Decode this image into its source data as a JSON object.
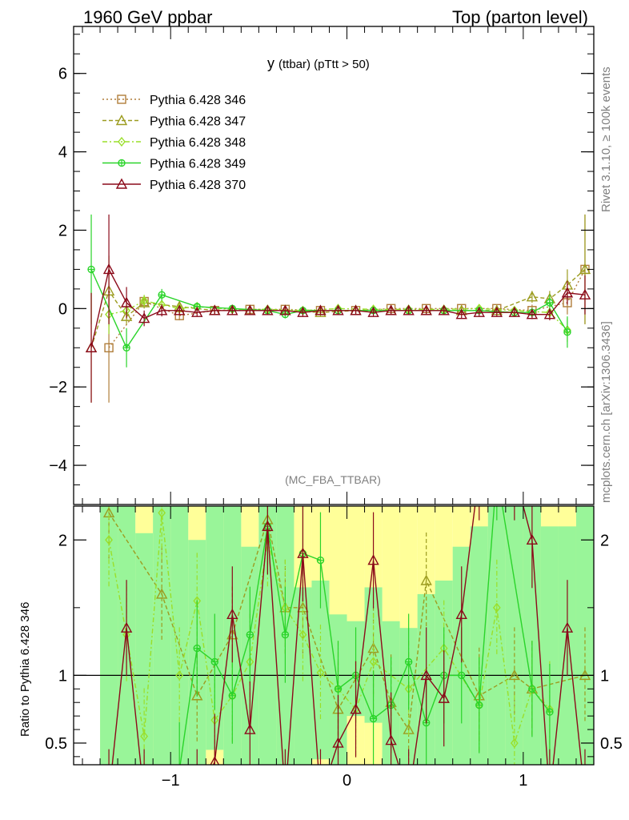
{
  "header": {
    "left": "1960 GeV ppbar",
    "right": "Top (parton level)"
  },
  "side": {
    "rivet": "Rivet 3.1.10, ≥ 100k events",
    "mcplots": "mcplots.cern.ch [arXiv:1306.3436]"
  },
  "chart_data": {
    "type": "line",
    "title": "y (ttbar) (pTtt > 50)",
    "title_main": "y",
    "title_sub": "(ttbar) (pTtt > 50)",
    "analysis": "(MC_FBA_TTBAR)",
    "ylabel_ratio": "Ratio to Pythia 6.428 346",
    "xlim": [
      -1.55,
      1.4
    ],
    "ylim_main": [
      -5,
      7.2
    ],
    "ylim_ratio": [
      0.34,
      2.25
    ],
    "x_ticks": [
      {
        "v": -1,
        "label": "−1"
      },
      {
        "v": 0,
        "label": "0"
      },
      {
        "v": 1,
        "label": "1"
      }
    ],
    "y_ticks_main": [
      {
        "v": -4,
        "label": "−4"
      },
      {
        "v": -2,
        "label": "−2"
      },
      {
        "v": 0,
        "label": "0"
      },
      {
        "v": 2,
        "label": "2"
      },
      {
        "v": 4,
        "label": "4"
      },
      {
        "v": 6,
        "label": "6"
      }
    ],
    "y_ticks_ratio": [
      {
        "v": 0.5,
        "label": "0.5"
      },
      {
        "v": 1,
        "label": "1"
      },
      {
        "v": 2,
        "label": "2"
      }
    ],
    "series": [
      {
        "name": "Pythia 6.428 346",
        "color": "#b07d3a",
        "marker": "square",
        "dash": "2,3",
        "x": [
          -1.35,
          -1.15,
          -0.95,
          -0.75,
          -0.55,
          -0.35,
          -0.15,
          0.05,
          0.25,
          0.45,
          0.65,
          0.85,
          1.05,
          1.25,
          1.35
        ],
        "y": [
          -1.0,
          0.18,
          -0.18,
          -0.05,
          -0.02,
          -0.02,
          -0.05,
          -0.05,
          0.0,
          0.0,
          0.0,
          0.0,
          -0.05,
          0.15,
          1.0
        ],
        "err": [
          1.4,
          0.15,
          0.12,
          0.1,
          0.1,
          0.1,
          0.1,
          0.1,
          0.1,
          0.1,
          0.1,
          0.1,
          0.15,
          0.3,
          1.4
        ]
      },
      {
        "name": "Pythia 6.428 347",
        "color": "#9c9c20",
        "marker": "triangle",
        "dash": "5,3",
        "x": [
          -1.45,
          -1.35,
          -1.25,
          -1.15,
          -0.95,
          -0.75,
          -0.55,
          -0.35,
          -0.15,
          0.05,
          0.25,
          0.45,
          0.65,
          0.85,
          1.05,
          1.15,
          1.25,
          1.35
        ],
        "y": [
          -1.0,
          0.45,
          -0.2,
          0.15,
          0.05,
          -0.05,
          -0.05,
          -0.05,
          -0.1,
          -0.05,
          -0.05,
          -0.05,
          -0.05,
          -0.05,
          0.3,
          0.25,
          0.6,
          1.0
        ],
        "err": [
          1.4,
          0.9,
          0.2,
          0.15,
          0.1,
          0.1,
          0.1,
          0.1,
          0.1,
          0.1,
          0.1,
          0.1,
          0.1,
          0.1,
          0.15,
          0.2,
          0.4,
          1.4
        ]
      },
      {
        "name": "Pythia 6.428 348",
        "color": "#9adf2a",
        "marker": "diamond",
        "dash": "6,3,2,3",
        "x": [
          -1.35,
          -1.25,
          -1.15,
          -1.05,
          -0.95,
          -0.85,
          -0.65,
          -0.45,
          -0.25,
          -0.05,
          0.15,
          0.35,
          0.55,
          0.75,
          0.95,
          1.15,
          1.25
        ],
        "y": [
          -0.15,
          -0.05,
          0.2,
          0.1,
          0.0,
          0.05,
          -0.02,
          -0.02,
          -0.05,
          0.0,
          -0.02,
          -0.02,
          -0.02,
          0.0,
          -0.05,
          -0.1,
          -0.55
        ],
        "err": [
          0.5,
          0.2,
          0.15,
          0.12,
          0.1,
          0.1,
          0.1,
          0.1,
          0.1,
          0.1,
          0.1,
          0.1,
          0.1,
          0.1,
          0.1,
          0.15,
          0.3
        ]
      },
      {
        "name": "Pythia 6.428 349",
        "color": "#2ad42a",
        "marker": "circleplus",
        "dash": "",
        "x": [
          -1.45,
          -1.25,
          -1.05,
          -0.85,
          -0.65,
          -0.45,
          -0.35,
          -0.25,
          -0.05,
          0.15,
          0.35,
          0.55,
          0.75,
          0.95,
          1.05,
          1.15,
          1.25
        ],
        "y": [
          1.0,
          -1.0,
          0.35,
          0.05,
          0.0,
          -0.05,
          -0.15,
          -0.05,
          -0.05,
          -0.05,
          -0.05,
          -0.05,
          -0.05,
          -0.1,
          -0.1,
          0.15,
          -0.6
        ],
        "err": [
          1.4,
          0.5,
          0.15,
          0.1,
          0.1,
          0.1,
          0.1,
          0.1,
          0.1,
          0.1,
          0.1,
          0.1,
          0.1,
          0.1,
          0.12,
          0.2,
          0.4
        ]
      },
      {
        "name": "Pythia 6.428 370",
        "color": "#8b0a1a",
        "marker": "triangle",
        "dash": "",
        "x": [
          -1.45,
          -1.35,
          -1.25,
          -1.15,
          -1.05,
          -0.95,
          -0.85,
          -0.75,
          -0.65,
          -0.55,
          -0.45,
          -0.35,
          -0.25,
          -0.15,
          -0.05,
          0.05,
          0.15,
          0.25,
          0.35,
          0.45,
          0.55,
          0.65,
          0.75,
          0.85,
          0.95,
          1.05,
          1.15,
          1.25,
          1.35
        ],
        "y": [
          -1.0,
          1.0,
          0.15,
          -0.25,
          -0.05,
          -0.05,
          -0.1,
          -0.05,
          -0.05,
          -0.05,
          -0.05,
          -0.05,
          -0.1,
          -0.05,
          -0.05,
          -0.05,
          -0.1,
          -0.05,
          -0.05,
          -0.05,
          -0.05,
          -0.15,
          -0.1,
          -0.1,
          -0.1,
          -0.15,
          -0.15,
          0.4,
          0.35
        ],
        "err": [
          1.4,
          1.4,
          0.4,
          0.2,
          0.15,
          0.12,
          0.1,
          0.1,
          0.1,
          0.1,
          0.1,
          0.1,
          0.1,
          0.1,
          0.1,
          0.1,
          0.1,
          0.1,
          0.1,
          0.1,
          0.1,
          0.1,
          0.1,
          0.1,
          0.1,
          0.12,
          0.15,
          0.3,
          0.5
        ]
      }
    ],
    "ratio_bands": [
      {
        "name": "yellow band",
        "color": "#ffff99",
        "bins": [
          [
            -1.4,
            -1.3,
            0.34,
            2.25
          ],
          [
            -1.3,
            -1.2,
            0.34,
            2.25
          ],
          [
            -1.2,
            -1.1,
            0.34,
            2.25
          ],
          [
            -1.1,
            -1.0,
            0.34,
            2.25
          ],
          [
            -1.0,
            -0.9,
            0.34,
            2.25
          ],
          [
            -0.9,
            -0.8,
            0.34,
            2.25
          ],
          [
            -0.8,
            -0.7,
            0.34,
            2.25
          ],
          [
            -0.7,
            -0.6,
            0.34,
            2.25
          ],
          [
            -0.6,
            -0.5,
            0.34,
            2.25
          ],
          [
            -0.5,
            -0.4,
            0.34,
            2.25
          ],
          [
            -0.4,
            -0.3,
            0.34,
            2.25
          ],
          [
            -0.3,
            -0.2,
            0.34,
            2.25
          ],
          [
            -0.2,
            -0.1,
            0.34,
            2.25
          ],
          [
            -0.1,
            0.0,
            0.34,
            2.25
          ],
          [
            0.0,
            0.1,
            0.34,
            2.25
          ],
          [
            0.1,
            0.2,
            0.34,
            2.25
          ],
          [
            0.2,
            0.3,
            0.34,
            2.25
          ],
          [
            0.3,
            0.4,
            0.34,
            2.25
          ],
          [
            0.4,
            0.5,
            0.34,
            2.25
          ],
          [
            0.5,
            0.6,
            0.34,
            2.25
          ],
          [
            0.6,
            0.7,
            0.34,
            2.25
          ],
          [
            0.7,
            0.8,
            0.34,
            2.25
          ],
          [
            0.8,
            0.9,
            0.34,
            2.25
          ],
          [
            0.9,
            1.0,
            0.34,
            2.25
          ],
          [
            1.0,
            1.1,
            0.34,
            2.25
          ],
          [
            1.1,
            1.2,
            0.34,
            2.25
          ],
          [
            1.2,
            1.3,
            0.34,
            2.25
          ],
          [
            1.3,
            1.4,
            0.34,
            2.25
          ]
        ]
      },
      {
        "name": "green band",
        "color": "#99f599",
        "bins": [
          [
            -1.4,
            -1.3,
            0.34,
            2.25
          ],
          [
            -1.3,
            -1.2,
            0.34,
            2.25
          ],
          [
            -1.2,
            -1.1,
            0.34,
            2.05
          ],
          [
            -1.1,
            -1.0,
            0.34,
            2.25
          ],
          [
            -1.0,
            -0.9,
            0.34,
            2.25
          ],
          [
            -0.9,
            -0.8,
            0.34,
            2.0
          ],
          [
            -0.8,
            -0.7,
            0.45,
            2.25
          ],
          [
            -0.7,
            -0.6,
            0.34,
            2.25
          ],
          [
            -0.6,
            -0.5,
            0.34,
            1.95
          ],
          [
            -0.5,
            -0.4,
            0.34,
            2.25
          ],
          [
            -0.4,
            -0.3,
            0.34,
            2.25
          ],
          [
            -0.3,
            -0.2,
            0.34,
            1.65
          ],
          [
            -0.2,
            -0.1,
            0.38,
            1.7
          ],
          [
            -0.1,
            0.0,
            0.34,
            1.45
          ],
          [
            0.0,
            0.1,
            0.7,
            1.4
          ],
          [
            0.1,
            0.2,
            0.65,
            1.65
          ],
          [
            0.2,
            0.3,
            0.34,
            1.4
          ],
          [
            0.3,
            0.4,
            0.34,
            1.35
          ],
          [
            0.4,
            0.5,
            0.34,
            1.6
          ],
          [
            0.5,
            0.6,
            0.34,
            1.7
          ],
          [
            0.6,
            0.7,
            0.34,
            1.95
          ],
          [
            0.7,
            0.8,
            0.34,
            2.1
          ],
          [
            0.8,
            0.9,
            0.34,
            2.25
          ],
          [
            0.9,
            1.0,
            0.34,
            2.25
          ],
          [
            1.0,
            1.1,
            0.34,
            2.25
          ],
          [
            1.1,
            1.2,
            0.34,
            2.1
          ],
          [
            1.2,
            1.3,
            0.34,
            2.1
          ],
          [
            1.3,
            1.4,
            0.34,
            2.25
          ]
        ]
      }
    ],
    "ratio_series": [
      {
        "name": "Pythia 6.428 347",
        "color": "#9c9c20",
        "marker": "triangle",
        "dash": "5,3",
        "x": [
          -1.35,
          -1.05,
          -0.85,
          -0.65,
          -0.45,
          -0.35,
          -0.25,
          -0.05,
          0.15,
          0.25,
          0.35,
          0.45,
          0.75,
          0.95,
          1.05,
          1.35
        ],
        "y": [
          2.2,
          1.6,
          0.85,
          1.3,
          2.15,
          1.5,
          1.5,
          0.75,
          1.2,
          0.8,
          0.6,
          1.7,
          0.85,
          1.0,
          0.9,
          1.0
        ]
      },
      {
        "name": "Pythia 6.428 348",
        "color": "#9adf2a",
        "marker": "diamond",
        "dash": "6,3,2,3",
        "x": [
          -1.35,
          -1.25,
          -1.15,
          -1.05,
          -0.95,
          -0.85,
          -0.75,
          -0.65,
          -0.55,
          -0.45,
          -0.35,
          -0.25,
          -0.15,
          -0.05,
          0.05,
          0.15,
          0.35,
          0.55,
          0.75,
          0.85,
          0.95,
          1.05,
          1.15
        ],
        "y": [
          2.0,
          1.3,
          0.55,
          2.2,
          1.0,
          1.55,
          0.67,
          0.85,
          1.1,
          2.0,
          1.5,
          1.3,
          1.02,
          0.9,
          0.75,
          1.1,
          0.9,
          1.2,
          0.78,
          1.5,
          0.5,
          0.9,
          0.75
        ]
      },
      {
        "name": "Pythia 6.428 349",
        "color": "#2ad42a",
        "marker": "circleplus",
        "dash": "",
        "x": [
          -0.95,
          -0.85,
          -0.75,
          -0.65,
          -0.55,
          -0.45,
          -0.35,
          -0.25,
          -0.15,
          -0.05,
          0.05,
          0.15,
          0.25,
          0.35,
          0.45,
          0.55,
          0.65,
          0.75,
          0.85,
          1.05,
          1.15
        ],
        "y": [
          0.3,
          1.2,
          1.1,
          0.85,
          1.3,
          2.1,
          1.3,
          1.9,
          1.85,
          0.9,
          1.0,
          0.68,
          0.78,
          1.1,
          0.65,
          1.0,
          1.0,
          0.78,
          2.5,
          0.9,
          0.73
        ]
      },
      {
        "name": "Pythia 6.428 370",
        "color": "#8b0a1a",
        "marker": "triangle",
        "dash": "",
        "x": [
          -1.35,
          -1.25,
          -1.15,
          -0.85,
          -0.75,
          -0.65,
          -0.55,
          -0.45,
          -0.35,
          -0.25,
          -0.15,
          -0.05,
          0.05,
          0.15,
          0.25,
          0.35,
          0.45,
          0.55,
          0.65,
          0.75,
          0.95,
          1.05,
          1.15,
          1.25,
          1.35
        ],
        "y": [
          0.1,
          1.35,
          0.1,
          0.1,
          0.36,
          1.45,
          0.6,
          2.1,
          0.1,
          1.9,
          0.1,
          0.5,
          0.75,
          1.85,
          0.52,
          0.1,
          1.0,
          0.83,
          1.45,
          2.5,
          2.5,
          2.0,
          0.1,
          1.35,
          0.1
        ]
      }
    ]
  }
}
